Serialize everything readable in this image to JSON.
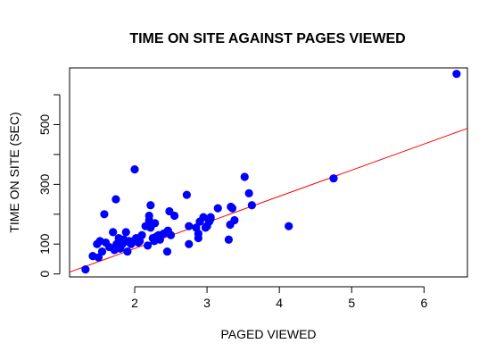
{
  "chart_data": {
    "type": "scatter",
    "title": "TIME ON SITE AGAINST PAGES VIEWED",
    "xlabel": "PAGED VIEWED",
    "ylabel": "TIME ON SITE (SEC)",
    "xlim": [
      1.1,
      6.6
    ],
    "ylim": [
      -10,
      690
    ],
    "xticks": [
      2,
      3,
      4,
      5,
      6
    ],
    "yticks": [
      0,
      100,
      200,
      300,
      400,
      500,
      600
    ],
    "yticklabels": [
      "0",
      "100",
      "",
      "300",
      "",
      "500",
      ""
    ],
    "grid": false,
    "legend": "none",
    "points_color": "#0000ff",
    "line_color": "#ff0000",
    "regression_line": {
      "intercept": -90,
      "slope": 87.5
    },
    "series": [
      {
        "x": [
          1.32,
          1.42,
          1.48,
          1.5,
          1.52,
          1.55,
          1.58,
          1.6,
          1.65,
          1.7,
          1.72,
          1.74,
          1.75,
          1.78,
          1.8,
          1.83,
          1.85,
          1.88,
          1.9,
          1.92,
          1.93,
          1.95,
          1.98,
          2.0,
          2.02,
          2.05,
          2.07,
          2.1,
          2.15,
          2.18,
          2.2,
          2.2,
          2.22,
          2.22,
          2.25,
          2.27,
          2.28,
          2.3,
          2.33,
          2.35,
          2.4,
          2.45,
          2.46,
          2.48,
          2.5,
          2.55,
          2.72,
          2.75,
          2.75,
          2.85,
          2.88,
          2.88,
          2.9,
          2.95,
          2.98,
          3.0,
          3.03,
          3.05,
          3.05,
          3.15,
          3.3,
          3.32,
          3.33,
          3.35,
          3.38,
          3.52,
          3.58,
          3.62,
          4.13,
          4.75,
          6.45
        ],
        "y": [
          15,
          60,
          100,
          55,
          110,
          75,
          200,
          105,
          90,
          140,
          80,
          250,
          100,
          120,
          85,
          100,
          115,
          140,
          75,
          110,
          105,
          100,
          110,
          350,
          120,
          105,
          110,
          130,
          160,
          95,
          180,
          195,
          230,
          155,
          120,
          110,
          170,
          125,
          130,
          115,
          135,
          75,
          145,
          210,
          130,
          195,
          265,
          160,
          100,
          155,
          135,
          120,
          175,
          190,
          155,
          160,
          175,
          185,
          190,
          220,
          115,
          165,
          225,
          220,
          180,
          325,
          270,
          230,
          160,
          320,
          670
        ]
      }
    ]
  }
}
